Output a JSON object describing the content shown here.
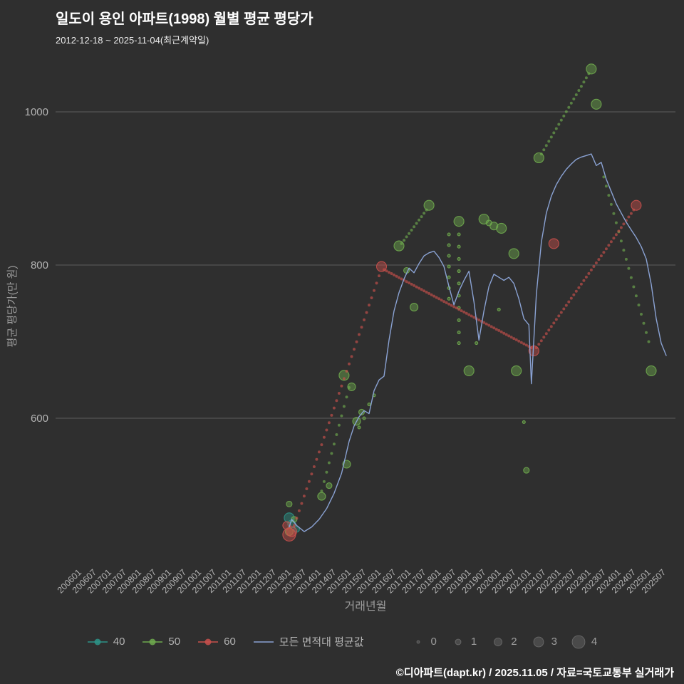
{
  "footer": {
    "credit": "©디아파트(dapt.kr) / 2025.11.05 / 자료=국토교통부 실거래가"
  },
  "chart_data": {
    "type": "scatter",
    "title": "일도이 용인 아파트(1998) 월별 평균 평당가",
    "subtitle": "2012-12-18 ~ 2025-11-04(최근계약일)",
    "xlabel": "거래년월",
    "ylabel": "평균 평당가(만 원)",
    "yticks": [
      600,
      800,
      1000
    ],
    "ylim": [
      410,
      1062
    ],
    "xlim": [
      "200601",
      "202512"
    ],
    "xticks": [
      "200601",
      "200607",
      "200701",
      "200707",
      "200801",
      "200807",
      "200901",
      "200907",
      "201001",
      "201007",
      "201101",
      "201107",
      "201201",
      "201207",
      "201301",
      "201307",
      "201401",
      "201407",
      "201501",
      "201507",
      "201601",
      "201607",
      "201701",
      "201707",
      "201801",
      "201807",
      "201901",
      "201907",
      "202001",
      "202007",
      "202101",
      "202107",
      "202201",
      "202207",
      "202301",
      "202307",
      "202401",
      "202407",
      "202501",
      "202507"
    ],
    "grid": "horizontal-only",
    "legend_position": "bottom",
    "size_radii": [
      2,
      4,
      5.5,
      7,
      9
    ],
    "size_legend": {
      "labels": [
        "0",
        "1",
        "2",
        "3",
        "4"
      ]
    },
    "colors": {
      "background": "#2f2f2f",
      "gridline": "#5d5d5d",
      "tick_label": "#b3b3b3",
      "axis_title": "#9a9a9a"
    },
    "series": [
      {
        "name": "40",
        "type": "scatter",
        "color": "#2d9488",
        "points": [
          [
            201212,
            470,
            3
          ],
          [
            201301,
            462,
            2
          ],
          [
            201303,
            455,
            1
          ]
        ],
        "trends": []
      },
      {
        "name": "50",
        "type": "scatter",
        "color": "#6faa4e",
        "points": [
          [
            201212,
            488,
            1
          ],
          [
            201212,
            452,
            2
          ],
          [
            201302,
            468,
            1
          ],
          [
            201401,
            498,
            2
          ],
          [
            201404,
            512,
            1
          ],
          [
            201410,
            656,
            3
          ],
          [
            201411,
            540,
            2
          ],
          [
            201501,
            641,
            2
          ],
          [
            201503,
            596,
            2
          ],
          [
            201505,
            608,
            1
          ],
          [
            201504,
            588,
            0
          ],
          [
            201506,
            600,
            0
          ],
          [
            201508,
            618,
            0
          ],
          [
            201510,
            630,
            0
          ],
          [
            201608,
            825,
            3
          ],
          [
            201611,
            793,
            1
          ],
          [
            201702,
            745,
            2
          ],
          [
            201708,
            878,
            3
          ],
          [
            201804,
            840,
            0
          ],
          [
            201804,
            826,
            0
          ],
          [
            201804,
            812,
            0
          ],
          [
            201804,
            798,
            0
          ],
          [
            201804,
            784,
            0
          ],
          [
            201804,
            770,
            0
          ],
          [
            201804,
            756,
            0
          ],
          [
            201808,
            857,
            3
          ],
          [
            201808,
            840,
            0
          ],
          [
            201808,
            824,
            0
          ],
          [
            201808,
            808,
            0
          ],
          [
            201808,
            792,
            0
          ],
          [
            201808,
            776,
            0
          ],
          [
            201808,
            760,
            0
          ],
          [
            201808,
            744,
            0
          ],
          [
            201808,
            728,
            0
          ],
          [
            201808,
            712,
            0
          ],
          [
            201808,
            698,
            0
          ],
          [
            201812,
            662,
            3
          ],
          [
            201903,
            698,
            0
          ],
          [
            201906,
            860,
            3
          ],
          [
            201908,
            855,
            1
          ],
          [
            201910,
            851,
            2
          ],
          [
            201912,
            742,
            0
          ],
          [
            202001,
            848,
            3
          ],
          [
            202006,
            815,
            3
          ],
          [
            202007,
            662,
            3
          ],
          [
            202010,
            595,
            0
          ],
          [
            202011,
            532,
            1
          ],
          [
            202104,
            940,
            3
          ],
          [
            202301,
            1056,
            3
          ],
          [
            202303,
            1010,
            3
          ],
          [
            202501,
            662,
            3
          ]
        ],
        "trends": [
          {
            "from": [
              201401,
              505
            ],
            "to": [
              201412,
              640
            ]
          },
          {
            "from": [
              201609,
              828
            ],
            "to": [
              201707,
              872
            ]
          },
          {
            "from": [
              202105,
              945
            ],
            "to": [
              202212,
              1050
            ]
          },
          {
            "from": [
              202306,
              915
            ],
            "to": [
              202412,
              700
            ]
          }
        ]
      },
      {
        "name": "60",
        "type": "scatter",
        "color": "#c9504c",
        "points": [
          [
            201212,
            448,
            4
          ],
          [
            201211,
            460,
            2
          ],
          [
            201301,
            452,
            3
          ],
          [
            201601,
            798,
            3
          ],
          [
            202102,
            688,
            3
          ],
          [
            202110,
            828,
            3
          ],
          [
            202407,
            878,
            3
          ]
        ],
        "trends": [
          {
            "from": [
              201302,
              460
            ],
            "to": [
              201512,
              786
            ]
          },
          {
            "from": [
              201602,
              794
            ],
            "to": [
              202101,
              692
            ]
          },
          {
            "from": [
              202103,
              692
            ],
            "to": [
              202406,
              872
            ]
          }
        ]
      },
      {
        "name": "모든 면적대 평균값",
        "type": "line",
        "color": "#8aa2d3",
        "points": [
          [
            201212,
            458
          ],
          [
            201301,
            468
          ],
          [
            201303,
            460
          ],
          [
            201306,
            452
          ],
          [
            201309,
            458
          ],
          [
            201312,
            468
          ],
          [
            201403,
            482
          ],
          [
            201406,
            502
          ],
          [
            201409,
            528
          ],
          [
            201412,
            570
          ],
          [
            201502,
            590
          ],
          [
            201504,
            602
          ],
          [
            201506,
            610
          ],
          [
            201508,
            606
          ],
          [
            201510,
            636
          ],
          [
            201512,
            650
          ],
          [
            201602,
            655
          ],
          [
            201604,
            702
          ],
          [
            201606,
            740
          ],
          [
            201608,
            764
          ],
          [
            201610,
            782
          ],
          [
            201612,
            796
          ],
          [
            201702,
            790
          ],
          [
            201704,
            802
          ],
          [
            201706,
            812
          ],
          [
            201708,
            816
          ],
          [
            201710,
            818
          ],
          [
            201712,
            810
          ],
          [
            201802,
            798
          ],
          [
            201804,
            772
          ],
          [
            201806,
            748
          ],
          [
            201808,
            766
          ],
          [
            201810,
            780
          ],
          [
            201812,
            792
          ],
          [
            201902,
            752
          ],
          [
            201904,
            702
          ],
          [
            201906,
            740
          ],
          [
            201908,
            772
          ],
          [
            201910,
            788
          ],
          [
            201912,
            784
          ],
          [
            202002,
            780
          ],
          [
            202004,
            784
          ],
          [
            202006,
            776
          ],
          [
            202008,
            756
          ],
          [
            202010,
            730
          ],
          [
            202012,
            722
          ],
          [
            202101,
            645
          ],
          [
            202103,
            762
          ],
          [
            202105,
            830
          ],
          [
            202107,
            868
          ],
          [
            202109,
            890
          ],
          [
            202111,
            905
          ],
          [
            202201,
            916
          ],
          [
            202203,
            925
          ],
          [
            202205,
            932
          ],
          [
            202207,
            938
          ],
          [
            202209,
            941
          ],
          [
            202211,
            943
          ],
          [
            202301,
            945
          ],
          [
            202303,
            930
          ],
          [
            202305,
            934
          ],
          [
            202307,
            912
          ],
          [
            202309,
            896
          ],
          [
            202311,
            880
          ],
          [
            202401,
            868
          ],
          [
            202403,
            856
          ],
          [
            202405,
            846
          ],
          [
            202407,
            836
          ],
          [
            202409,
            824
          ],
          [
            202411,
            808
          ],
          [
            202501,
            775
          ],
          [
            202503,
            730
          ],
          [
            202505,
            698
          ],
          [
            202507,
            682
          ]
        ]
      }
    ]
  }
}
